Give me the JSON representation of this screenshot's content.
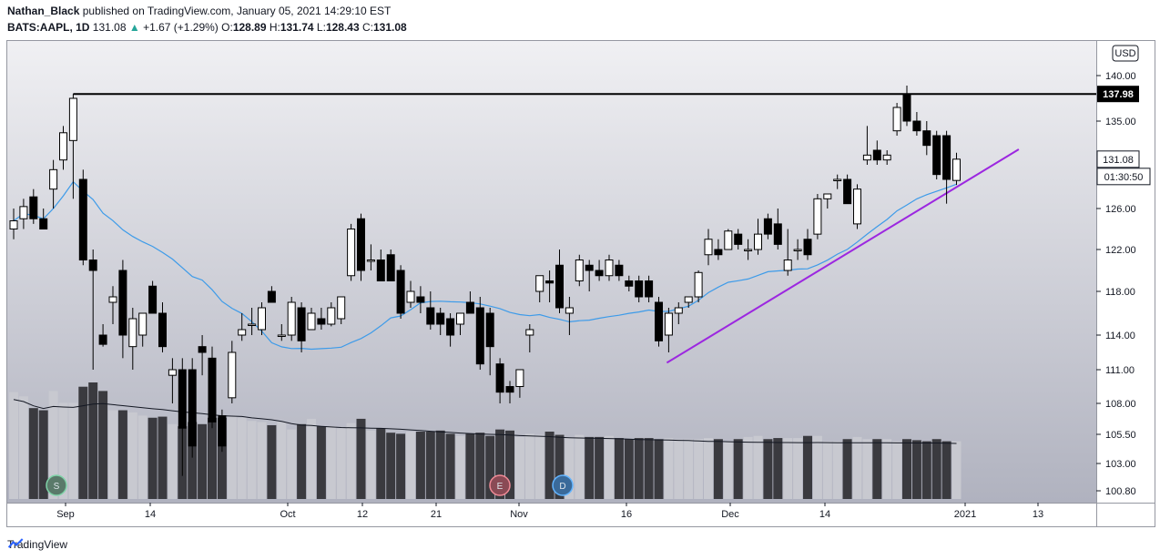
{
  "header": {
    "author": "Nathan_Black",
    "published_text": "published on TradingView.com, January 05, 2021 14:29:10 EST",
    "symbol": "BATS:AAPL, 1D",
    "last": "131.08",
    "change_arrow": "▲",
    "change": "+1.67 (+1.29%)",
    "o_label": "O:",
    "o_val": "128.89",
    "h_label": "H:",
    "h_val": "131.74",
    "l_label": "L:",
    "l_val": "128.43",
    "c_label": "C:",
    "c_val": "131.08"
  },
  "footer": {
    "brand": "TradingView"
  },
  "colors": {
    "bg_top": "#f2f2f5",
    "bg_bottom": "#b4b6c3",
    "up_candle": "#ffffff",
    "down_candle": "#000000",
    "ma_line": "#3d9be9",
    "trendline": "#9c27e0",
    "resistance": "#000000"
  },
  "chart_data": {
    "type": "candlestick",
    "currency": "USD",
    "y_ticks": [
      "140.00",
      "135.00",
      "126.00",
      "122.00",
      "118.00",
      "114.00",
      "111.00",
      "108.00",
      "105.50",
      "103.00",
      "100.80"
    ],
    "x_ticks": [
      "Sep",
      "14",
      "Oct",
      "12",
      "21",
      "Nov",
      "16",
      "Dec",
      "14",
      "2021",
      "13"
    ],
    "resistance_level": "137.98",
    "last_price": "131.08",
    "countdown": "01:30:50",
    "event_markers": [
      "S",
      "E",
      "D"
    ],
    "ohlc": [
      [
        124.0,
        126.0,
        123.0,
        124.8
      ],
      [
        125.0,
        127.0,
        124.0,
        126.2
      ],
      [
        127.2,
        128.0,
        124.5,
        125.0
      ],
      [
        125.0,
        126.0,
        124.0,
        124.0
      ],
      [
        128.0,
        131.0,
        126.0,
        130.0
      ],
      [
        131.0,
        134.5,
        130.0,
        133.8
      ],
      [
        133.0,
        137.98,
        127.0,
        137.5
      ],
      [
        129.0,
        130.0,
        120.5,
        121.0
      ],
      [
        121.0,
        122.0,
        111.0,
        120.0
      ],
      [
        114.0,
        115.0,
        113.0,
        113.2
      ],
      [
        117.0,
        118.5,
        115.0,
        117.5
      ],
      [
        120.0,
        121.0,
        112.0,
        114.0
      ],
      [
        113.0,
        116.5,
        111.0,
        115.5
      ],
      [
        114.0,
        116.0,
        113.0,
        116.0
      ],
      [
        118.5,
        119.0,
        116.0,
        116.0
      ],
      [
        116.0,
        117.0,
        112.5,
        113.0
      ],
      [
        110.5,
        112.0,
        108.0,
        111.0
      ],
      [
        111.0,
        112.0,
        102.0,
        106.0
      ],
      [
        111.0,
        112.0,
        103.5,
        104.5
      ],
      [
        113.0,
        114.0,
        110.5,
        112.5
      ],
      [
        112.0,
        113.0,
        106.0,
        106.5
      ],
      [
        107.0,
        107.5,
        104.0,
        104.5
      ],
      [
        108.5,
        113.5,
        108.0,
        112.5
      ],
      [
        114.0,
        116.0,
        113.5,
        114.5
      ],
      [
        115.0,
        116.5,
        114.0,
        115.0
      ],
      [
        114.5,
        117.0,
        114.0,
        116.5
      ],
      [
        118.0,
        118.5,
        117.0,
        117.0
      ],
      [
        114.0,
        115.0,
        113.5,
        114.0
      ],
      [
        114.0,
        117.5,
        113.5,
        117.0
      ],
      [
        116.5,
        117.0,
        112.5,
        113.5
      ],
      [
        114.5,
        116.5,
        114.5,
        116.0
      ],
      [
        115.5,
        116.5,
        114.5,
        115.0
      ],
      [
        115.0,
        117.0,
        114.8,
        116.5
      ],
      [
        115.5,
        117.5,
        115.0,
        117.5
      ],
      [
        119.5,
        124.5,
        119.0,
        124.0
      ],
      [
        125.0,
        125.5,
        119.0,
        120.0
      ],
      [
        121.0,
        122.5,
        120.0,
        121.0
      ],
      [
        121.0,
        122.0,
        119.0,
        119.0
      ],
      [
        121.5,
        122.0,
        119.0,
        119.0
      ],
      [
        120.0,
        120.5,
        115.5,
        116.0
      ],
      [
        117.0,
        119.0,
        116.5,
        118.0
      ],
      [
        117.5,
        118.5,
        116.0,
        117.0
      ],
      [
        116.5,
        118.0,
        114.5,
        115.0
      ],
      [
        116.0,
        116.5,
        114.0,
        115.0
      ],
      [
        115.5,
        116.0,
        113.0,
        114.0
      ],
      [
        115.0,
        116.0,
        114.0,
        116.0
      ],
      [
        117.0,
        118.0,
        116.0,
        116.0
      ],
      [
        116.5,
        117.5,
        111.0,
        111.5
      ],
      [
        116.0,
        116.5,
        110.5,
        113.0
      ],
      [
        111.5,
        112.0,
        108.0,
        109.0
      ],
      [
        109.5,
        110.0,
        108.0,
        109.0
      ],
      [
        109.5,
        111.0,
        108.5,
        111.0
      ],
      [
        114.0,
        115.0,
        112.5,
        114.5
      ],
      [
        118.0,
        119.5,
        117.0,
        119.5
      ],
      [
        119.0,
        120.0,
        117.0,
        118.8
      ],
      [
        120.5,
        122.0,
        116.0,
        116.5
      ],
      [
        116.0,
        117.5,
        114.0,
        116.5
      ],
      [
        119.0,
        121.5,
        118.5,
        121.0
      ],
      [
        120.5,
        121.0,
        118.0,
        120.0
      ],
      [
        120.0,
        121.0,
        119.0,
        119.5
      ],
      [
        119.5,
        121.5,
        119.0,
        121.0
      ],
      [
        120.5,
        121.0,
        119.0,
        119.5
      ],
      [
        119.0,
        119.5,
        118.0,
        118.5
      ],
      [
        119.0,
        119.5,
        117.0,
        117.5
      ],
      [
        119.0,
        119.5,
        117.0,
        117.5
      ],
      [
        117.0,
        117.5,
        113.0,
        113.5
      ],
      [
        114.0,
        116.5,
        112.5,
        116.0
      ],
      [
        116.0,
        117.0,
        115.0,
        116.5
      ],
      [
        117.0,
        117.5,
        116.5,
        117.5
      ],
      [
        117.5,
        120.0,
        117.0,
        119.8
      ],
      [
        121.5,
        124.0,
        120.5,
        123.0
      ],
      [
        122.0,
        123.0,
        121.0,
        121.5
      ],
      [
        122.0,
        124.0,
        122.0,
        123.8
      ],
      [
        123.5,
        124.0,
        122.0,
        122.5
      ],
      [
        122.0,
        123.0,
        121.0,
        122.0
      ],
      [
        122.0,
        125.0,
        121.5,
        123.5
      ],
      [
        125.0,
        125.5,
        123.0,
        123.5
      ],
      [
        124.5,
        126.0,
        122.0,
        122.5
      ],
      [
        120.0,
        124.0,
        119.5,
        121.0
      ],
      [
        122.0,
        123.0,
        121.0,
        122.0
      ],
      [
        123.0,
        124.0,
        121.0,
        121.5
      ],
      [
        123.5,
        127.5,
        123.0,
        127.0
      ],
      [
        127.0,
        127.5,
        126.0,
        127.5
      ],
      [
        129.0,
        129.5,
        128.0,
        129.0
      ],
      [
        129.0,
        129.5,
        126.5,
        126.5
      ],
      [
        124.5,
        128.5,
        124.0,
        128.0
      ],
      [
        131.0,
        134.5,
        130.5,
        131.5
      ],
      [
        132.0,
        133.0,
        130.5,
        131.0
      ],
      [
        131.0,
        132.0,
        130.5,
        131.5
      ],
      [
        134.0,
        137.0,
        133.5,
        136.5
      ],
      [
        138.0,
        138.9,
        134.5,
        135.0
      ],
      [
        135.0,
        136.0,
        133.5,
        134.0
      ],
      [
        134.0,
        135.0,
        131.5,
        132.5
      ],
      [
        133.5,
        134.0,
        129.0,
        129.5
      ],
      [
        133.5,
        134.0,
        126.5,
        129.0
      ],
      [
        128.89,
        131.74,
        128.43,
        131.08
      ]
    ],
    "volume": [
      100,
      96,
      85,
      83,
      101,
      90,
      90,
      105,
      109,
      101,
      83,
      83,
      81,
      78,
      76,
      77,
      70,
      68,
      72,
      70,
      76,
      76,
      78,
      76,
      73,
      72,
      69,
      72,
      65,
      70,
      75,
      68,
      68,
      66,
      71,
      75,
      64,
      66,
      62,
      61,
      63,
      63,
      63,
      64,
      61,
      59,
      61,
      62,
      59,
      65,
      64,
      58,
      61,
      60,
      63,
      60,
      58,
      60,
      58,
      58,
      59,
      57,
      56,
      57,
      57,
      56,
      57,
      56,
      56,
      56,
      57,
      56,
      54,
      56,
      58,
      59,
      56,
      57,
      57,
      57,
      59,
      59,
      54,
      54,
      56,
      58,
      56,
      56,
      56,
      54,
      56,
      55,
      54,
      56,
      54,
      54
    ]
  }
}
